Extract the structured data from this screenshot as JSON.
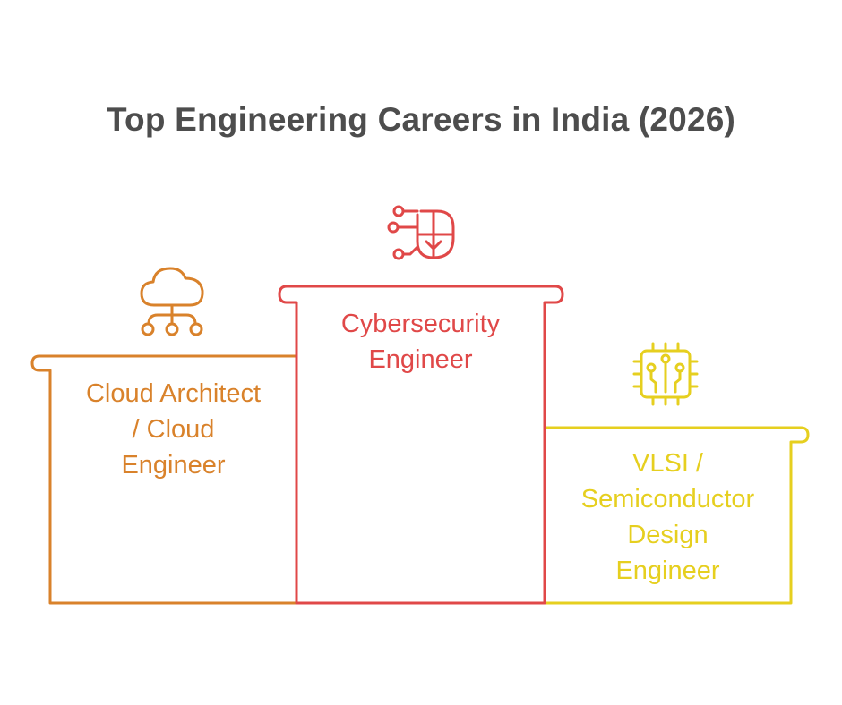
{
  "title": "Top Engineering Careers in India (2026)",
  "colors": {
    "title": "#4d4d4d",
    "cloud": "#d9822b",
    "cyber": "#e04848",
    "vlsi": "#e6cf1f"
  },
  "steps": [
    {
      "icon": "cloud-network-icon",
      "lines": [
        "Cloud Architect",
        "/ Cloud",
        "Engineer"
      ]
    },
    {
      "icon": "cyber-face-circuit-icon",
      "lines": [
        "Cybersecurity",
        "Engineer"
      ]
    },
    {
      "icon": "microchip-icon",
      "lines": [
        "VLSI /",
        "Semiconductor",
        "Design",
        "Engineer"
      ]
    }
  ]
}
